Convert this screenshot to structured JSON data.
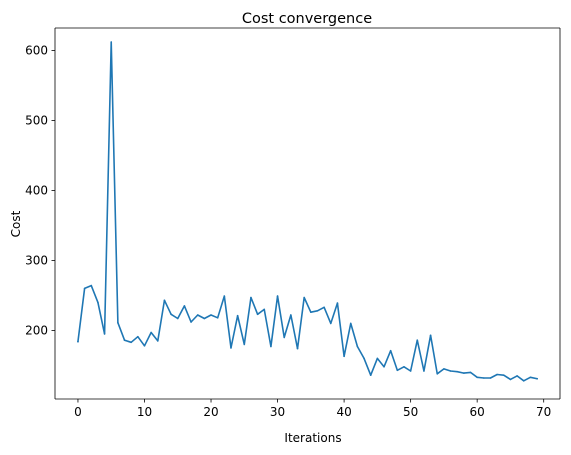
{
  "chart_data": {
    "type": "line",
    "title": "Cost convergence",
    "xlabel": "Iterations",
    "ylabel": "Cost",
    "xlim": [
      -3.45,
      72.45
    ],
    "ylim": [
      102,
      632
    ],
    "xticks": [
      0,
      10,
      20,
      30,
      40,
      50,
      60,
      70
    ],
    "yticks": [
      200,
      300,
      400,
      500,
      600
    ],
    "grid": false,
    "series": [
      {
        "color": "#1f77b4",
        "x": [
          0,
          1,
          2,
          3,
          4,
          5,
          6,
          7,
          8,
          9,
          10,
          11,
          12,
          13,
          14,
          15,
          16,
          17,
          18,
          19,
          20,
          21,
          22,
          23,
          24,
          25,
          26,
          27,
          28,
          29,
          30,
          31,
          32,
          33,
          34,
          35,
          36,
          37,
          38,
          39,
          40,
          41,
          42,
          43,
          44,
          45,
          46,
          47,
          48,
          49,
          50,
          51,
          52,
          53,
          54,
          55,
          56,
          57,
          58,
          59,
          60,
          61,
          62,
          63,
          64,
          65,
          66,
          67,
          68,
          69
        ],
        "values": [
          184,
          260,
          264,
          240,
          195,
          612,
          211,
          186,
          183,
          191,
          178,
          197,
          185,
          243,
          223,
          217,
          235,
          212,
          222,
          217,
          222,
          218,
          249,
          175,
          221,
          180,
          247,
          223,
          230,
          177,
          249,
          190,
          222,
          174,
          247,
          226,
          228,
          233,
          210,
          239,
          163,
          210,
          177,
          160,
          136,
          160,
          148,
          171,
          143,
          148,
          142,
          186,
          142,
          193,
          138,
          145,
          142,
          141,
          139,
          140,
          133,
          132,
          132,
          137,
          136,
          130,
          135,
          128,
          133,
          131
        ]
      }
    ]
  }
}
